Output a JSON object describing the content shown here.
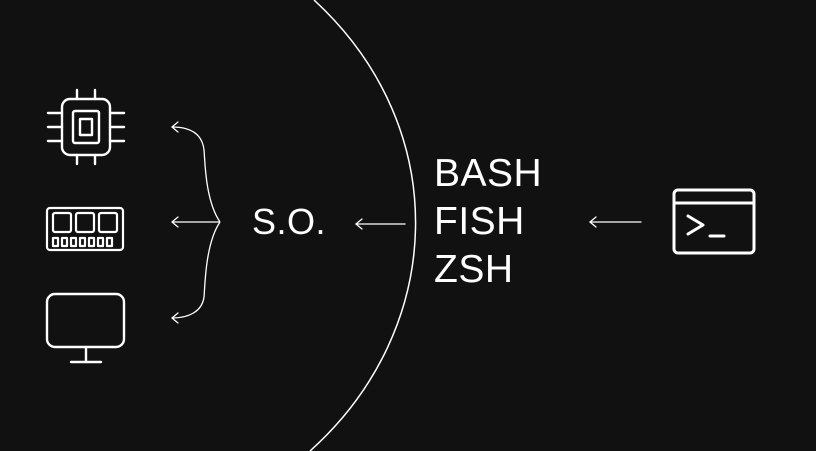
{
  "diagram": {
    "background": "#111111",
    "stroke_color": "#ffffff",
    "hardware_icons": [
      "cpu-icon",
      "ram-icon",
      "monitor-icon"
    ],
    "os_label": "S.O.",
    "shells": [
      "BASH",
      "FISH",
      "ZSH"
    ],
    "terminal_icon": "terminal-icon"
  }
}
